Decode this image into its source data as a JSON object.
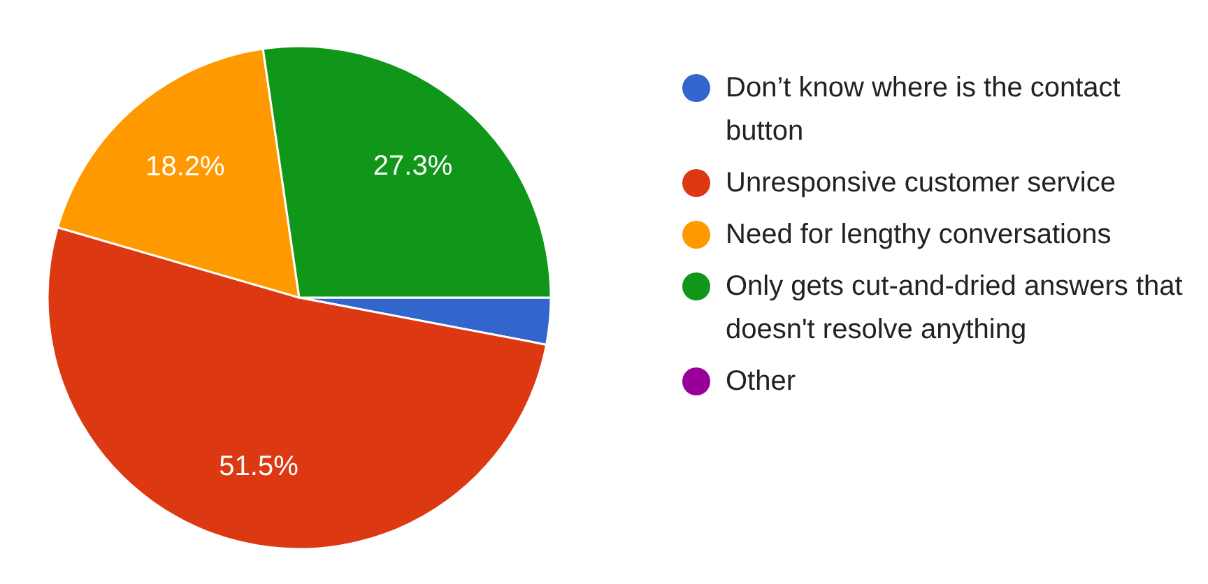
{
  "chart_data": {
    "type": "pie",
    "categories": [
      "Don’t know where is the contact button",
      "Unresponsive customer service",
      "Need for lengthy conversations",
      "Only gets cut-and-dried answers that doesn't resolve anything",
      "Other"
    ],
    "values": [
      3.0,
      51.5,
      18.2,
      27.3,
      0
    ],
    "colors": [
      "#3366cc",
      "#dc3912",
      "#ff9900",
      "#109618",
      "#990099"
    ],
    "value_labels": [
      null,
      "51.5%",
      "18.2%",
      "27.3%",
      null
    ],
    "legend": "right"
  }
}
